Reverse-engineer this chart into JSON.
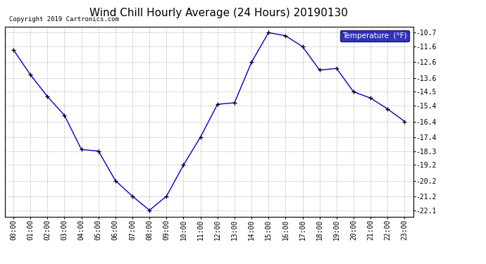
{
  "title": "Wind Chill Hourly Average (24 Hours) 20190130",
  "copyright": "Copyright 2019 Cartronics.com",
  "legend_label": "Temperature  (°F)",
  "hours": [
    "00:00",
    "01:00",
    "02:00",
    "03:00",
    "04:00",
    "05:00",
    "06:00",
    "07:00",
    "08:00",
    "09:00",
    "10:00",
    "11:00",
    "12:00",
    "13:00",
    "14:00",
    "15:00",
    "16:00",
    "17:00",
    "18:00",
    "19:00",
    "20:00",
    "21:00",
    "22:00",
    "23:00"
  ],
  "values": [
    -11.8,
    -13.4,
    -14.8,
    -16.0,
    -18.2,
    -18.3,
    -20.2,
    -21.2,
    -22.1,
    -21.2,
    -19.2,
    -17.4,
    -15.3,
    -15.2,
    -12.6,
    -10.7,
    -10.9,
    -11.6,
    -13.1,
    -13.0,
    -14.5,
    -14.9,
    -15.6,
    -16.4
  ],
  "ylim_min": -22.5,
  "ylim_max": -10.3,
  "yticks": [
    -10.7,
    -11.6,
    -12.6,
    -13.6,
    -14.5,
    -15.4,
    -16.4,
    -17.4,
    -18.3,
    -19.2,
    -20.2,
    -21.2,
    -22.1
  ],
  "line_color": "#0000cc",
  "marker_color": "#000000",
  "background_color": "#ffffff",
  "plot_bg_color": "#ffffff",
  "grid_color": "#bbbbbb",
  "title_fontsize": 11,
  "copyright_fontsize": 6.5,
  "tick_fontsize": 7,
  "legend_bg": "#0000aa",
  "legend_fg": "#ffffff",
  "legend_fontsize": 7.5
}
